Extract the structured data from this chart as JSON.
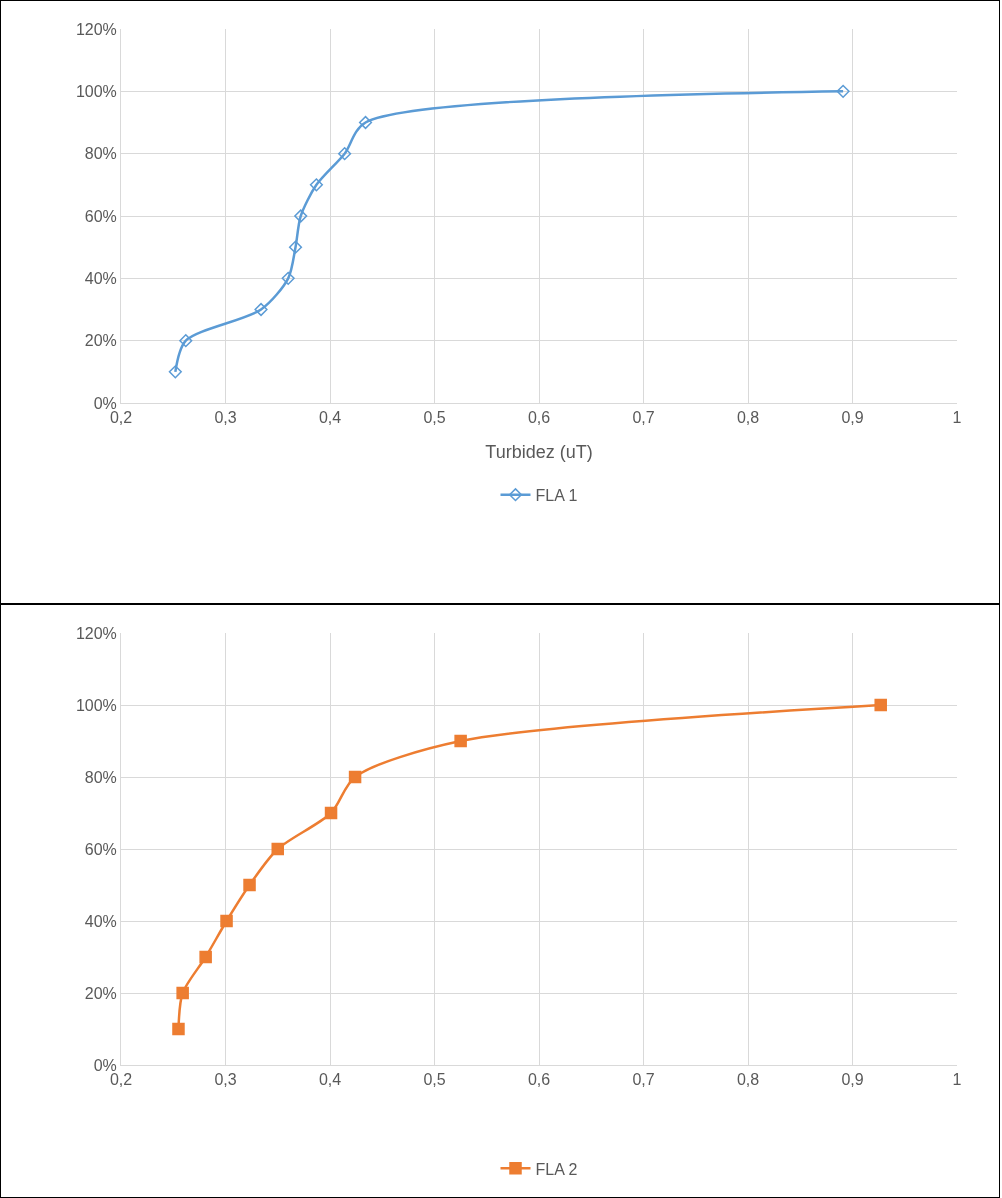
{
  "chart_data": [
    {
      "type": "line",
      "xlabel": "Turbidez (uT)",
      "grid": true,
      "legend": "bottom",
      "line_style": "solid",
      "xlim": [
        0.2,
        1
      ],
      "xticks": [
        {
          "value": 0.2,
          "label": "0,2"
        },
        {
          "value": 0.3,
          "label": "0,3"
        },
        {
          "value": 0.4,
          "label": "0,4"
        },
        {
          "value": 0.5,
          "label": "0,5"
        },
        {
          "value": 0.6,
          "label": "0,6"
        },
        {
          "value": 0.7,
          "label": "0,7"
        },
        {
          "value": 0.8,
          "label": "0,8"
        },
        {
          "value": 0.9,
          "label": "0,9"
        },
        1
      ],
      "ylim": [
        0,
        120
      ],
      "yticks": [
        {
          "value": 0,
          "label": "0%"
        },
        {
          "value": 20,
          "label": "20%"
        },
        {
          "value": 40,
          "label": "40%"
        },
        {
          "value": 60,
          "label": "60%"
        },
        {
          "value": 80,
          "label": "80%"
        },
        {
          "value": 100,
          "label": "100%"
        },
        {
          "value": 120,
          "label": "120%"
        }
      ],
      "series": [
        {
          "name": "FLA 1",
          "color": "#5b9bd5",
          "marker": "diamond",
          "x": [
            0.252,
            0.262,
            0.334,
            0.36,
            0.367,
            0.372,
            0.387,
            0.414,
            0.434,
            0.891
          ],
          "values": [
            10,
            20,
            30,
            40,
            50,
            60,
            70,
            80,
            90,
            100
          ]
        }
      ]
    },
    {
      "type": "line",
      "grid": true,
      "legend": "bottom",
      "line_style": "solid",
      "xlim": [
        0.2,
        1
      ],
      "xticks": [
        {
          "value": 0.2,
          "label": "0,2"
        },
        {
          "value": 0.3,
          "label": "0,3"
        },
        {
          "value": 0.4,
          "label": "0,4"
        },
        {
          "value": 0.5,
          "label": "0,5"
        },
        {
          "value": 0.6,
          "label": "0,6"
        },
        {
          "value": 0.7,
          "label": "0,7"
        },
        {
          "value": 0.8,
          "label": "0,8"
        },
        {
          "value": 0.9,
          "label": "0,9"
        },
        1
      ],
      "ylim": [
        0,
        120
      ],
      "yticks": [
        {
          "value": 0,
          "label": "0%"
        },
        {
          "value": 20,
          "label": "20%"
        },
        {
          "value": 40,
          "label": "40%"
        },
        {
          "value": 60,
          "label": "60%"
        },
        {
          "value": 80,
          "label": "80%"
        },
        {
          "value": 100,
          "label": "100%"
        },
        {
          "value": 120,
          "label": "120%"
        }
      ],
      "series": [
        {
          "name": "FLA 2",
          "color": "#ed7d31",
          "marker": "square",
          "x": [
            0.255,
            0.259,
            0.281,
            0.301,
            0.323,
            0.35,
            0.401,
            0.424,
            0.525,
            0.927
          ],
          "values": [
            10,
            20,
            30,
            40,
            50,
            60,
            70,
            80,
            90,
            100
          ]
        }
      ]
    }
  ]
}
